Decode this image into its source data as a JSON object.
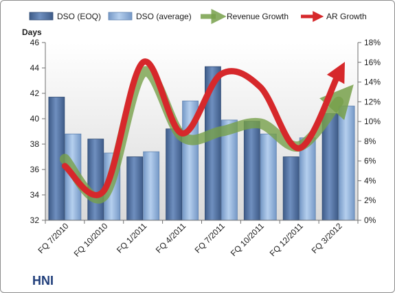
{
  "chart_data": {
    "type": "bar",
    "brand_label": "HNI",
    "left_axis_title": "Days",
    "categories": [
      "FQ 7/2010",
      "FQ 10/2010",
      "FQ 1/2011",
      "FQ 4/2011",
      "FQ 7/2011",
      "FQ 10/2011",
      "FQ 12/2011",
      "FQ 3/2012"
    ],
    "ylim": [
      32,
      46
    ],
    "y_ticks": [
      "32",
      "34",
      "36",
      "38",
      "40",
      "42",
      "44",
      "46"
    ],
    "y2lim": [
      0,
      18
    ],
    "y2_ticks": [
      "0%",
      "2%",
      "4%",
      "6%",
      "8%",
      "10%",
      "12%",
      "14%",
      "16%",
      "18%"
    ],
    "bar_series": [
      {
        "name": "DSO (EOQ)",
        "color": "#4f6f9f",
        "values": [
          41.7,
          38.4,
          37.0,
          39.2,
          44.1,
          39.8,
          37.0,
          40.4
        ]
      },
      {
        "name": "DSO (average)",
        "color": "#8fb1d9",
        "values": [
          38.8,
          37.3,
          37.4,
          41.4,
          39.9,
          38.8,
          38.5,
          41.0
        ]
      }
    ],
    "line_series": [
      {
        "name": "Revenue Growth",
        "color": "#77a04a",
        "values": [
          6.2,
          2.5,
          15.0,
          8.5,
          9.0,
          9.8,
          7.5,
          12.0
        ]
      },
      {
        "name": "AR Growth",
        "color": "#d6282b",
        "values": [
          5.5,
          3.0,
          16.0,
          8.8,
          14.8,
          13.5,
          7.3,
          14.8
        ]
      }
    ],
    "grid": false,
    "legend_position": "top"
  }
}
